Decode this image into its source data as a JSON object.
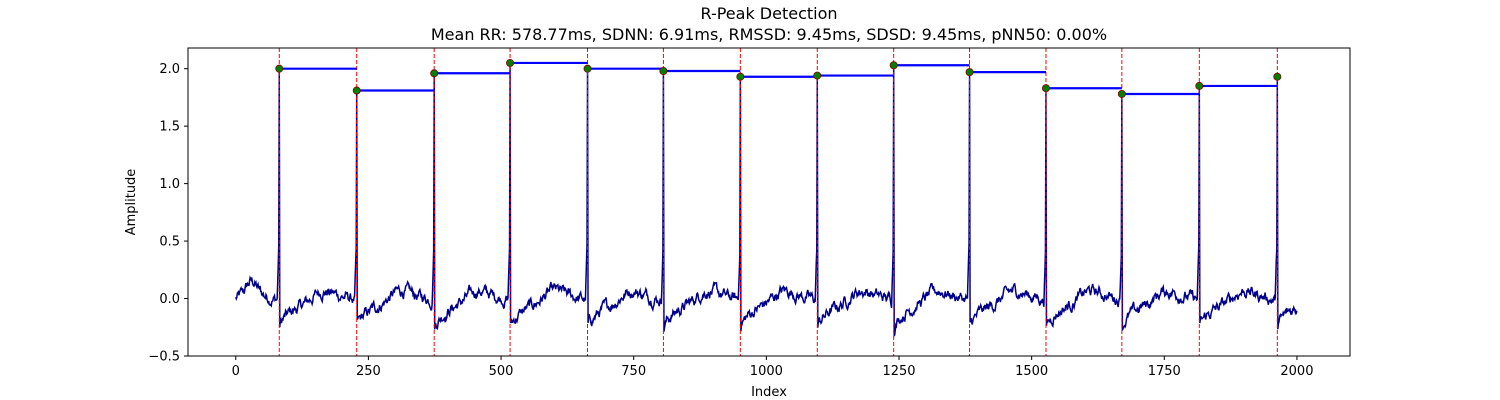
{
  "chart_data": {
    "type": "line",
    "title": "R-Peak Detection",
    "subtitle": "Mean RR: 578.77ms, SDNN: 6.91ms, RMSSD: 9.45ms, SDSD: 9.45ms, pNN50: 0.00%",
    "xlabel": "Index",
    "ylabel": "Amplitude",
    "xlim": [
      -90,
      2100
    ],
    "ylim": [
      -0.5,
      2.18
    ],
    "xticks": [
      0,
      250,
      500,
      750,
      1000,
      1250,
      1500,
      1750,
      2000
    ],
    "yticks": [
      -0.5,
      0.0,
      0.5,
      1.0,
      1.5,
      2.0
    ],
    "ytick_labels": [
      "−0.5",
      "0.0",
      "0.5",
      "1.0",
      "1.5",
      "2.0"
    ],
    "grid": false,
    "signal_range": [
      0,
      2000
    ],
    "r_peaks": {
      "x": [
        82,
        228,
        374,
        517,
        663,
        806,
        951,
        1096,
        1240,
        1383,
        1527,
        1670,
        1816,
        1963
      ],
      "y": [
        2.0,
        1.81,
        1.96,
        2.05,
        2.0,
        1.98,
        1.93,
        1.94,
        2.03,
        1.97,
        1.83,
        1.78,
        1.85,
        1.93
      ]
    },
    "rr_intervals": [
      {
        "x0": 82,
        "x1": 228,
        "y": 2.0
      },
      {
        "x0": 228,
        "x1": 374,
        "y": 1.81
      },
      {
        "x0": 374,
        "x1": 517,
        "y": 1.96
      },
      {
        "x0": 517,
        "x1": 663,
        "y": 2.05
      },
      {
        "x0": 663,
        "x1": 806,
        "y": 2.0
      },
      {
        "x0": 806,
        "x1": 951,
        "y": 1.98
      },
      {
        "x0": 951,
        "x1": 1096,
        "y": 1.93
      },
      {
        "x0": 1096,
        "x1": 1240,
        "y": 1.94
      },
      {
        "x0": 1240,
        "x1": 1383,
        "y": 2.03
      },
      {
        "x0": 1383,
        "x1": 1527,
        "y": 1.97
      },
      {
        "x0": 1527,
        "x1": 1670,
        "y": 1.83
      },
      {
        "x0": 1670,
        "x1": 1816,
        "y": 1.78
      },
      {
        "x0": 1816,
        "x1": 1963,
        "y": 1.85
      }
    ],
    "colors": {
      "signal": "#00008b",
      "peak_line": "#ff0000",
      "peak_marker": "#008000",
      "interval": "#0000ff"
    }
  }
}
